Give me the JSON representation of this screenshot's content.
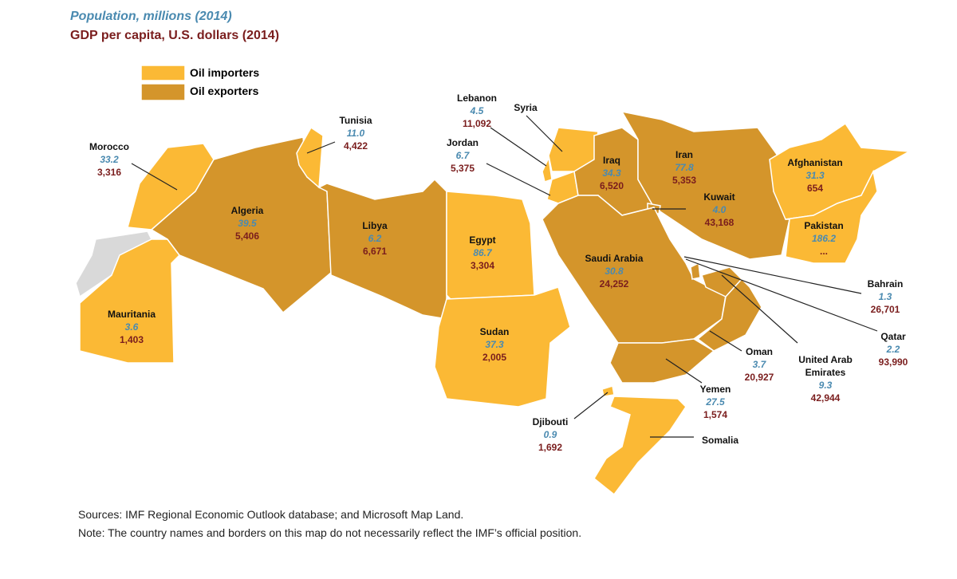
{
  "header": {
    "population_caption": "Population, millions (2014)",
    "gdp_caption": "GDP per capita, U.S. dollars (2014)"
  },
  "legend": {
    "importers": "Oil importers",
    "exporters": "Oil exporters"
  },
  "countries": [
    {
      "name": "Morocco",
      "population": "33.2",
      "gdp": "3,316"
    },
    {
      "name": "Tunisia",
      "population": "11.0",
      "gdp": "4,422"
    },
    {
      "name": "Algeria",
      "population": "39.5",
      "gdp": "5,406"
    },
    {
      "name": "Libya",
      "population": "6.2",
      "gdp": "6,671"
    },
    {
      "name": "Mauritania",
      "population": "3.6",
      "gdp": "1,403"
    },
    {
      "name": "Egypt",
      "population": "86.7",
      "gdp": "3,304"
    },
    {
      "name": "Sudan",
      "population": "37.3",
      "gdp": "2,005"
    },
    {
      "name": "Lebanon",
      "population": "4.5",
      "gdp": "11,092"
    },
    {
      "name": "Syria"
    },
    {
      "name": "Jordan",
      "population": "6.7",
      "gdp": "5,375"
    },
    {
      "name": "Iraq",
      "population": "34.3",
      "gdp": "6,520"
    },
    {
      "name": "Iran",
      "population": "77.8",
      "gdp": "5,353"
    },
    {
      "name": "Kuwait",
      "population": "4.0",
      "gdp": "43,168"
    },
    {
      "name": "Afghanistan",
      "population": "31.3",
      "gdp": "654"
    },
    {
      "name": "Pakistan",
      "population": "186.2",
      "gdp": "..."
    },
    {
      "name": "Saudi Arabia",
      "population": "30.8",
      "gdp": "24,252"
    },
    {
      "name": "Bahrain",
      "population": "1.3",
      "gdp": "26,701"
    },
    {
      "name": "Qatar",
      "population": "2.2",
      "gdp": "93,990"
    },
    {
      "name": "Oman",
      "population": "3.7",
      "gdp": "20,927"
    },
    {
      "name": "United Arab Emirates",
      "population": "9.3",
      "gdp": "42,944"
    },
    {
      "name": "Yemen",
      "population": "27.5",
      "gdp": "1,574"
    },
    {
      "name": "Djibouti",
      "population": "0.9",
      "gdp": "1,692"
    },
    {
      "name": "Somalia"
    }
  ],
  "footer": {
    "sources": "Sources: IMF Regional Economic Outlook database; and Microsoft Map Land.",
    "note": "Note: The country names and borders on this map do not necessarily reflect the IMF’s official position."
  }
}
